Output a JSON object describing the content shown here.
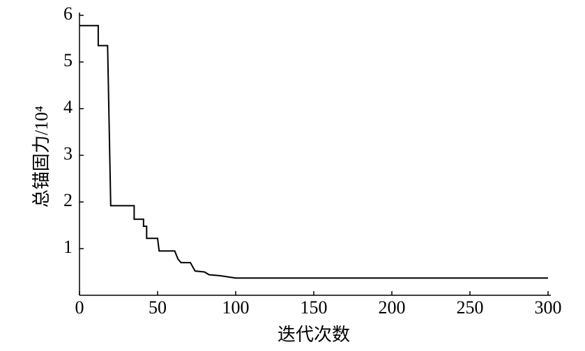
{
  "chart_data": {
    "type": "line",
    "xlabel": "迭代次数",
    "ylabel": "总锚固力/10⁴",
    "x": [
      0,
      12,
      12,
      18,
      20,
      35,
      35,
      41,
      41,
      43,
      43,
      50,
      51,
      61,
      63,
      65,
      71,
      74,
      80,
      83,
      90,
      100,
      300
    ],
    "series": [
      {
        "color": "#000000",
        "values": [
          5.78,
          5.78,
          5.35,
          5.35,
          1.92,
          1.92,
          1.63,
          1.63,
          1.48,
          1.48,
          1.22,
          1.22,
          0.95,
          0.95,
          0.78,
          0.7,
          0.7,
          0.52,
          0.5,
          0.44,
          0.42,
          0.37,
          0.37
        ]
      }
    ],
    "xlim": [
      0,
      300
    ],
    "xticks": [
      0,
      50,
      100,
      150,
      200,
      250,
      300
    ],
    "ylim": [
      0,
      6
    ],
    "yticks": [
      1,
      2,
      3,
      4,
      5,
      6
    ]
  }
}
